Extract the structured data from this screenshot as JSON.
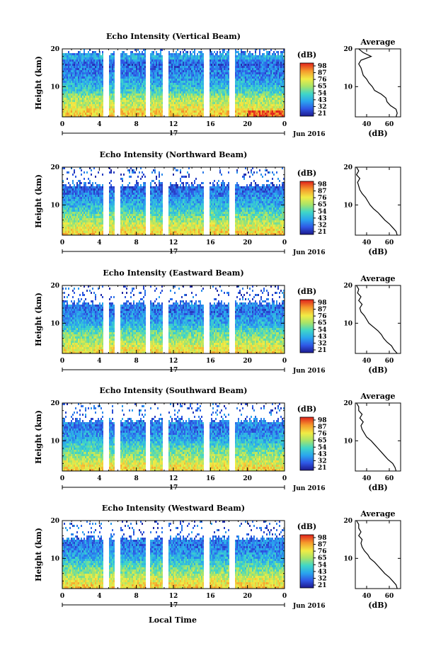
{
  "figure": {
    "xlabel": "Local Time",
    "date_label": "17",
    "month_label": "Jun 2016"
  },
  "chart_data": [
    {
      "type": "heatmap",
      "title": "Echo Intensity (Vertical Beam)",
      "ylabel": "Height (km)",
      "xlabel": "Local Time",
      "x_ticks": [
        "0",
        "4",
        "8",
        "12",
        "16",
        "20",
        "0"
      ],
      "y_ticks": [
        "10",
        "20"
      ],
      "xlim": [
        0,
        24
      ],
      "ylim": [
        2,
        20
      ],
      "colorbar": {
        "unit": "(dB)",
        "ticks": [
          "98",
          "87",
          "76",
          "65",
          "54",
          "43",
          "32",
          "21"
        ],
        "range": [
          21,
          98
        ]
      },
      "data_gaps_hours": [
        [
          4.3,
          4.9
        ],
        [
          5.6,
          6.2
        ],
        [
          8.9,
          9.4
        ],
        [
          10.8,
          11.4
        ],
        [
          15.2,
          15.8
        ],
        [
          18.0,
          18.6
        ]
      ],
      "average_profile": {
        "title": "Average",
        "xlabel": "(dB)",
        "x_ticks": [
          "40",
          "60"
        ],
        "y_ticks": [
          "10",
          "20"
        ],
        "xlim": [
          30,
          70
        ],
        "ylim": [
          2,
          20
        ],
        "height_km": [
          2,
          3,
          4,
          5,
          6,
          7,
          8,
          9,
          10,
          11,
          12,
          13,
          14,
          15,
          16,
          17,
          18,
          19,
          20
        ],
        "db": [
          66,
          67,
          66,
          61,
          58,
          57,
          53,
          47,
          45,
          42,
          40,
          37,
          36,
          35,
          33,
          35,
          44,
          37,
          33
        ]
      }
    },
    {
      "type": "heatmap",
      "title": "Echo Intensity (Northward Beam)",
      "ylabel": "Height (km)",
      "xlabel": "Local Time",
      "x_ticks": [
        "0",
        "4",
        "8",
        "12",
        "16",
        "20",
        "0"
      ],
      "y_ticks": [
        "10",
        "20"
      ],
      "xlim": [
        0,
        24
      ],
      "ylim": [
        2,
        20
      ],
      "colorbar": {
        "unit": "(dB)",
        "ticks": [
          "98",
          "87",
          "76",
          "65",
          "54",
          "43",
          "32",
          "21"
        ],
        "range": [
          21,
          98
        ]
      },
      "data_gaps_hours": [
        [
          4.3,
          4.9
        ],
        [
          5.6,
          6.2
        ],
        [
          8.9,
          9.4
        ],
        [
          10.8,
          11.4
        ],
        [
          15.2,
          15.8
        ],
        [
          18.0,
          18.6
        ]
      ],
      "average_profile": {
        "title": "",
        "xlabel": "(dB)",
        "x_ticks": [
          "40",
          "60"
        ],
        "y_ticks": [
          "10",
          "20"
        ],
        "xlim": [
          30,
          70
        ],
        "ylim": [
          2,
          20
        ],
        "height_km": [
          2,
          3,
          4,
          5,
          6,
          7,
          8,
          9,
          10,
          11,
          12,
          13,
          14,
          15,
          16,
          17,
          18,
          19,
          20
        ],
        "db": [
          67,
          66,
          63,
          60,
          56,
          53,
          50,
          46,
          43,
          41,
          39,
          36,
          34,
          33,
          32,
          34,
          31,
          33,
          31
        ]
      }
    },
    {
      "type": "heatmap",
      "title": "Echo Intensity (Eastward Beam)",
      "ylabel": "Height (km)",
      "xlabel": "Local Time",
      "x_ticks": [
        "0",
        "4",
        "8",
        "12",
        "16",
        "20",
        "0"
      ],
      "y_ticks": [
        "10",
        "20"
      ],
      "xlim": [
        0,
        24
      ],
      "ylim": [
        2,
        20
      ],
      "colorbar": {
        "unit": "(dB)",
        "ticks": [
          "98",
          "87",
          "76",
          "65",
          "54",
          "43",
          "32",
          "21"
        ],
        "range": [
          21,
          98
        ]
      },
      "data_gaps_hours": [
        [
          4.3,
          4.9
        ],
        [
          5.6,
          6.2
        ],
        [
          8.9,
          9.4
        ],
        [
          10.8,
          11.4
        ],
        [
          15.2,
          15.8
        ],
        [
          18.0,
          18.6
        ]
      ],
      "average_profile": {
        "title": "Average",
        "xlabel": "(dB)",
        "x_ticks": [
          "40",
          "60"
        ],
        "y_ticks": [
          "10",
          "20"
        ],
        "xlim": [
          30,
          70
        ],
        "ylim": [
          2,
          20
        ],
        "height_km": [
          2,
          3,
          4,
          5,
          6,
          7,
          8,
          9,
          10,
          11,
          12,
          13,
          14,
          15,
          16,
          17,
          18,
          19,
          20
        ],
        "db": [
          67,
          64,
          62,
          58,
          55,
          53,
          50,
          46,
          42,
          40,
          38,
          35,
          34,
          36,
          33,
          35,
          32,
          33,
          31
        ]
      }
    },
    {
      "type": "heatmap",
      "title": "Echo Intensity (Southward Beam)",
      "ylabel": "Height (km)",
      "xlabel": "Local Time",
      "x_ticks": [
        "0",
        "4",
        "8",
        "12",
        "16",
        "20",
        "0"
      ],
      "y_ticks": [
        "10",
        "20"
      ],
      "xlim": [
        0,
        24
      ],
      "ylim": [
        2,
        20
      ],
      "colorbar": {
        "unit": "(dB)",
        "ticks": [
          "98",
          "87",
          "76",
          "65",
          "54",
          "43",
          "32",
          "21"
        ],
        "range": [
          21,
          98
        ]
      },
      "data_gaps_hours": [
        [
          4.3,
          4.9
        ],
        [
          5.6,
          6.2
        ],
        [
          8.9,
          9.4
        ],
        [
          10.8,
          11.4
        ],
        [
          15.2,
          15.8
        ],
        [
          18.0,
          18.6
        ]
      ],
      "average_profile": {
        "title": "Average",
        "xlabel": "(dB)",
        "x_ticks": [
          "40",
          "60"
        ],
        "y_ticks": [
          "10",
          "20"
        ],
        "xlim": [
          30,
          70
        ],
        "ylim": [
          2,
          20
        ],
        "height_km": [
          2,
          3,
          4,
          5,
          6,
          7,
          8,
          9,
          10,
          11,
          12,
          13,
          14,
          15,
          16,
          17,
          18,
          19,
          20
        ],
        "db": [
          66,
          65,
          63,
          59,
          56,
          53,
          50,
          47,
          44,
          40,
          38,
          36,
          35,
          37,
          34,
          36,
          33,
          33,
          31
        ]
      }
    },
    {
      "type": "heatmap",
      "title": "Echo Intensity (Westward Beam)",
      "ylabel": "Height (km)",
      "xlabel": "Local Time",
      "x_ticks": [
        "0",
        "4",
        "8",
        "12",
        "16",
        "20",
        "0"
      ],
      "y_ticks": [
        "10",
        "20"
      ],
      "xlim": [
        0,
        24
      ],
      "ylim": [
        2,
        20
      ],
      "colorbar": {
        "unit": "(dB)",
        "ticks": [
          "98",
          "87",
          "76",
          "65",
          "54",
          "43",
          "32",
          "21"
        ],
        "range": [
          21,
          98
        ]
      },
      "data_gaps_hours": [
        [
          4.3,
          4.9
        ],
        [
          5.6,
          6.2
        ],
        [
          8.9,
          9.4
        ],
        [
          10.8,
          11.4
        ],
        [
          15.2,
          15.8
        ],
        [
          18.0,
          18.6
        ]
      ],
      "average_profile": {
        "title": "Average",
        "xlabel": "(dB)",
        "x_ticks": [
          "40",
          "60"
        ],
        "y_ticks": [
          "10",
          "20"
        ],
        "xlim": [
          30,
          70
        ],
        "ylim": [
          2,
          20
        ],
        "height_km": [
          2,
          3,
          4,
          5,
          6,
          7,
          8,
          9,
          10,
          11,
          12,
          13,
          14,
          15,
          16,
          17,
          18,
          19,
          20
        ],
        "db": [
          67,
          66,
          63,
          60,
          56,
          53,
          50,
          47,
          43,
          41,
          38,
          36,
          35,
          36,
          33,
          35,
          33,
          33,
          31
        ]
      }
    }
  ]
}
